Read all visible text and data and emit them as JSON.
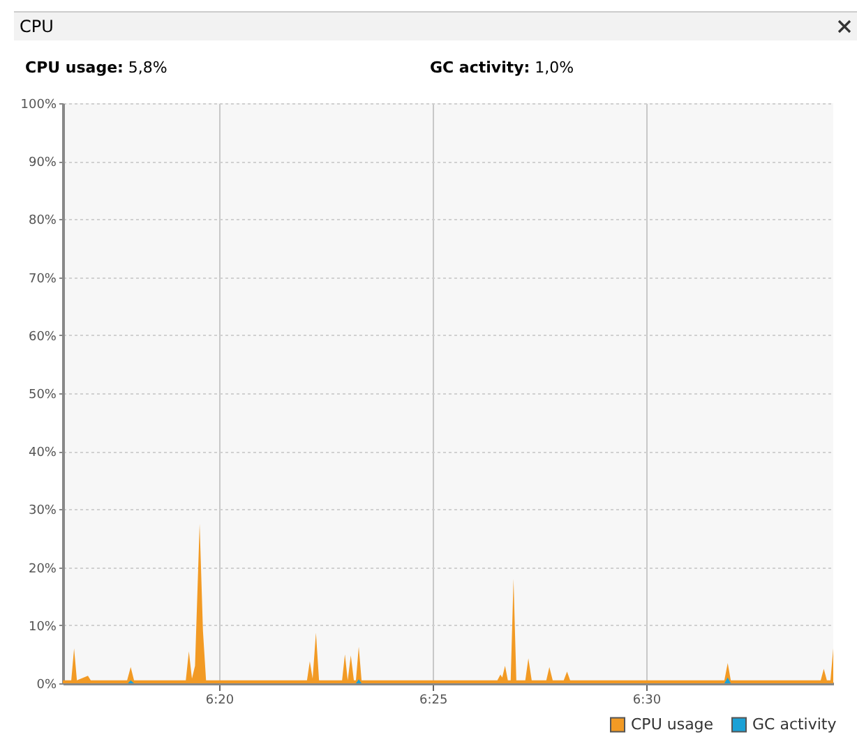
{
  "chart_data": {
    "type": "area",
    "title": "CPU",
    "annotations": [
      "CPU usage: 5,8%",
      "GC activity: 1,0%"
    ],
    "xlim": [
      6.2723,
      6.573
    ],
    "xticks": [
      {
        "value": 6.3333,
        "label": "6:20"
      },
      {
        "value": 6.4167,
        "label": "6:25"
      },
      {
        "value": 6.5,
        "label": "6:30"
      }
    ],
    "ylim": [
      0,
      100
    ],
    "yticks": [
      {
        "value": 0,
        "label": "0%"
      },
      {
        "value": 10,
        "label": "10%"
      },
      {
        "value": 20,
        "label": "20%"
      },
      {
        "value": 30,
        "label": "30%"
      },
      {
        "value": 40,
        "label": "40%"
      },
      {
        "value": 50,
        "label": "50%"
      },
      {
        "value": 60,
        "label": "60%"
      },
      {
        "value": 70,
        "label": "70%"
      },
      {
        "value": 80,
        "label": "80%"
      },
      {
        "value": 90,
        "label": "90%"
      },
      {
        "value": 100,
        "label": "100%"
      }
    ],
    "grid": true,
    "legend": "bottom right",
    "series": [
      {
        "name": "CPU usage",
        "color": "#f29a24",
        "x": [
          6.2723,
          6.2756,
          6.2767,
          6.2778,
          6.2821,
          6.2832,
          6.2974,
          6.2988,
          6.3001,
          6.3203,
          6.3215,
          6.3227,
          6.3239,
          6.3257,
          6.327,
          6.3282,
          6.3676,
          6.3687,
          6.3698,
          6.3711,
          6.3723,
          6.3813,
          6.3824,
          6.3835,
          6.3847,
          6.3859,
          6.3867,
          6.3878,
          6.3889,
          6.4419,
          6.4431,
          6.4438,
          6.4449,
          6.446,
          6.4471,
          6.4482,
          6.4493,
          6.4528,
          6.454,
          6.4553,
          6.461,
          6.4622,
          6.4635,
          6.4678,
          6.4691,
          6.4703,
          6.5305,
          6.5318,
          6.533,
          6.5681,
          6.5693,
          6.5705,
          6.5719,
          6.573
        ],
        "values": [
          0.5,
          0.5,
          6,
          0.5,
          1.3,
          0.5,
          0.5,
          2.8,
          0.5,
          0.5,
          5.5,
          0.8,
          3,
          27.5,
          9,
          0.5,
          0.5,
          3.8,
          0.8,
          8.7,
          0.5,
          0.5,
          5,
          0.5,
          4.8,
          0.5,
          0.5,
          6.3,
          0.5,
          0.5,
          1.5,
          1,
          3,
          0.5,
          0.5,
          18,
          0.5,
          0.5,
          4.3,
          0.5,
          0.5,
          2.8,
          0.5,
          0.5,
          2,
          0.5,
          0.5,
          3.5,
          0.5,
          0.5,
          2.5,
          0.5,
          0.5,
          6
        ]
      },
      {
        "name": "GC activity",
        "color": "#1ba1d6",
        "x": [
          6.2723,
          6.2977,
          6.2988,
          6.3001,
          6.3867,
          6.3878,
          6.3889,
          6.5305,
          6.5318,
          6.533,
          6.573
        ],
        "values": [
          0,
          0,
          0.5,
          0,
          0,
          0.7,
          0,
          0,
          1,
          0,
          0
        ]
      }
    ]
  }
}
